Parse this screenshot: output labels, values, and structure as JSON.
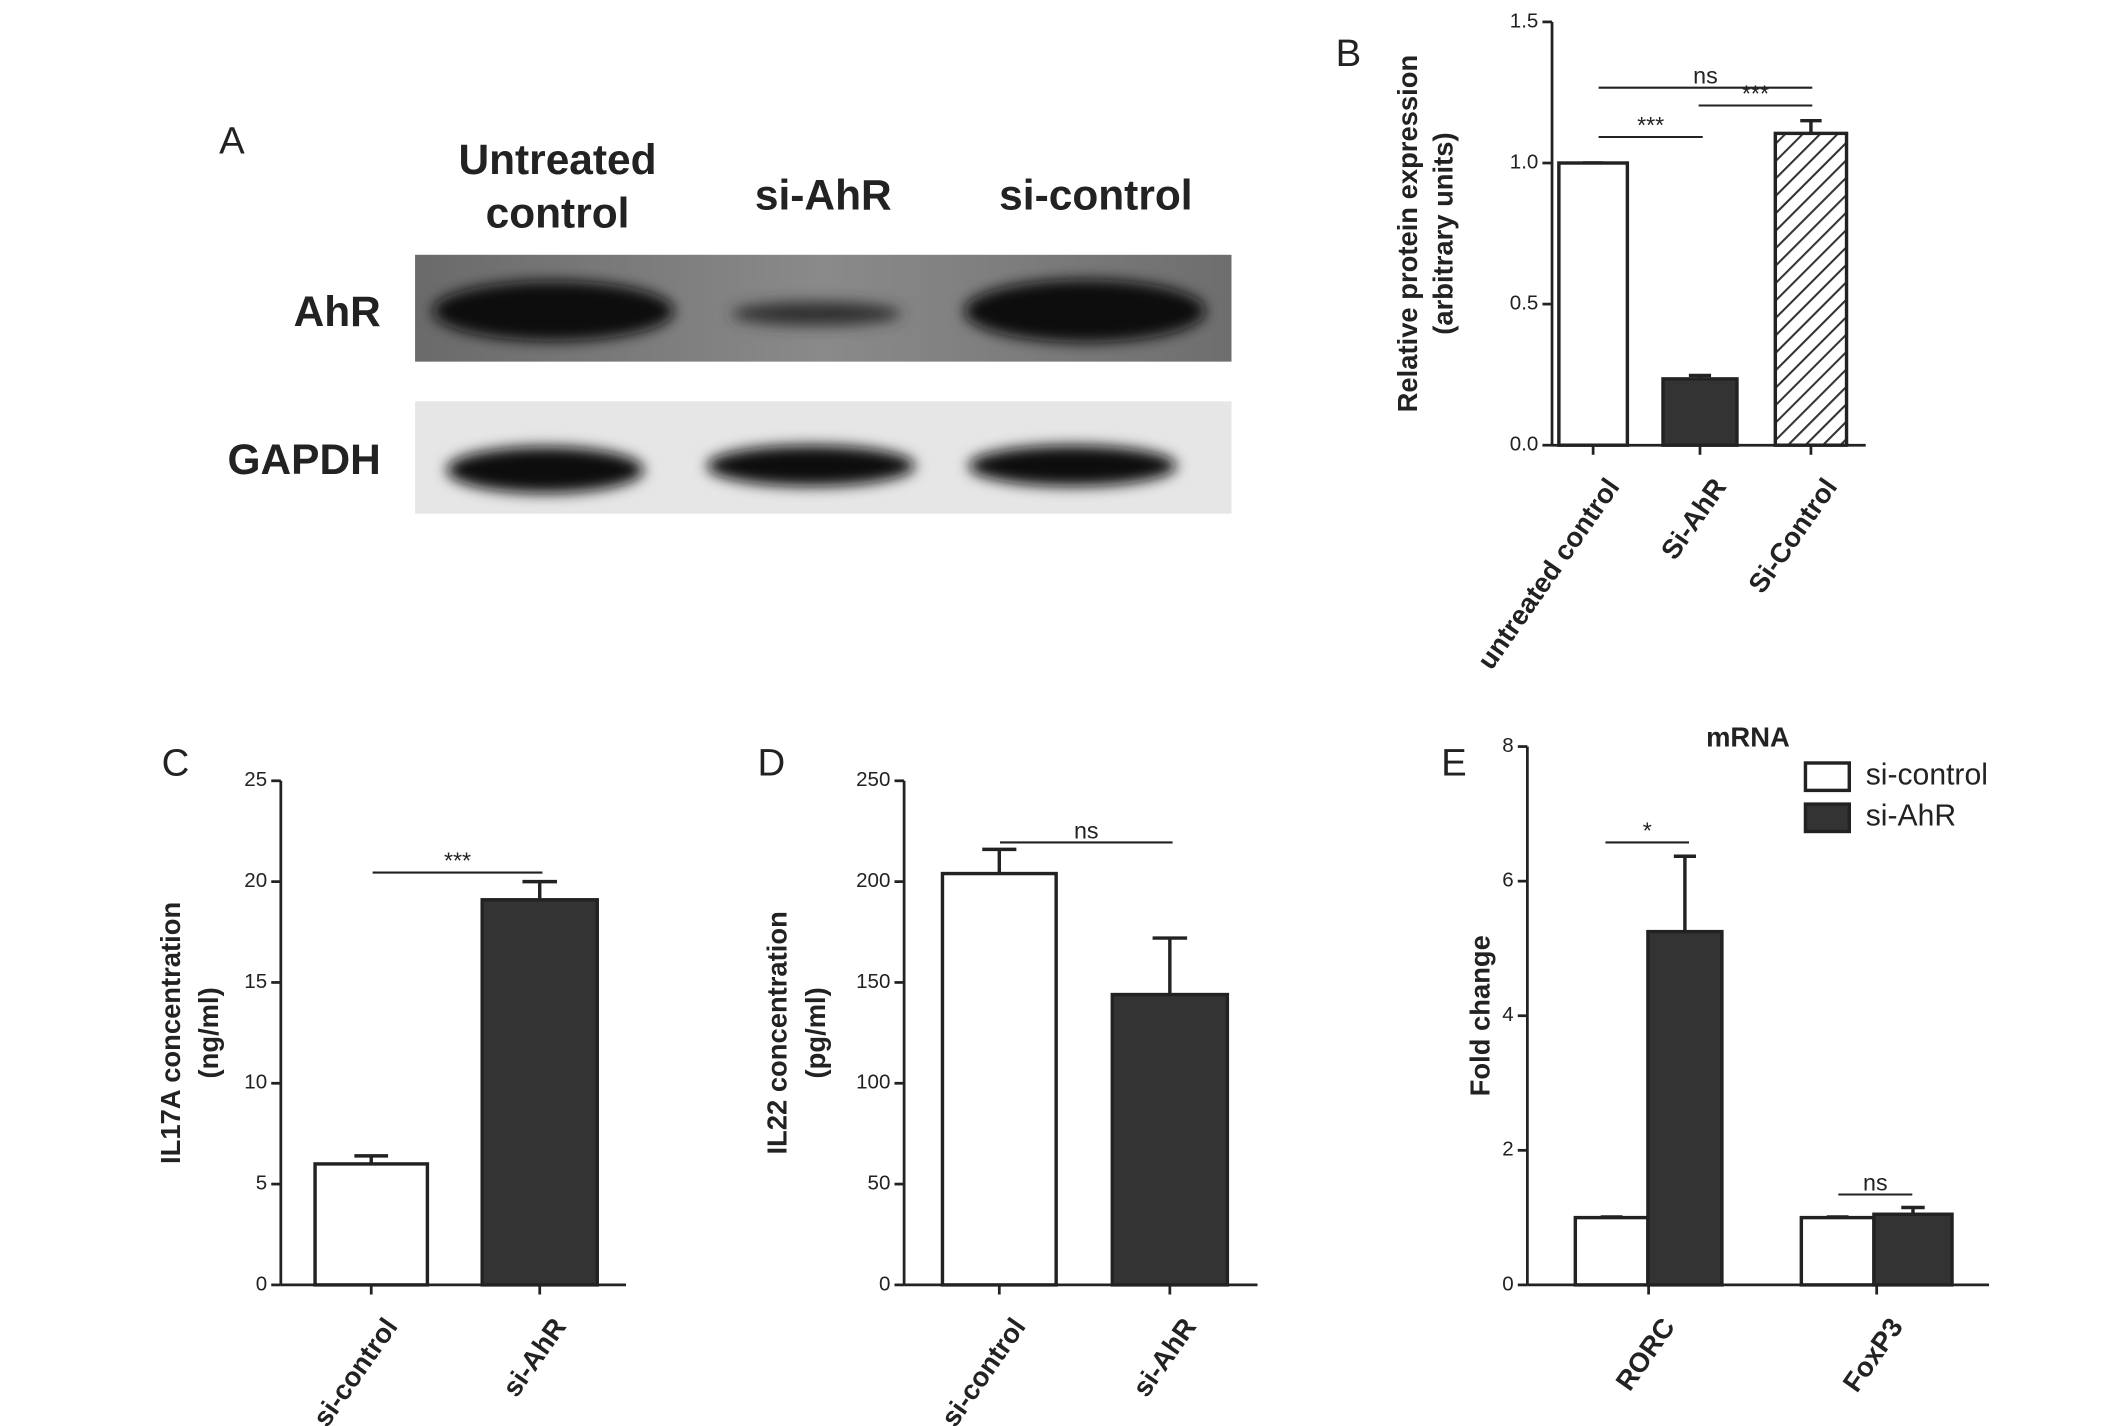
{
  "blot": {
    "panel": "A",
    "lanes": [
      [
        "Untreated",
        "control"
      ],
      "si-AhR",
      "si-control"
    ],
    "rows": [
      "AhR",
      "GAPDH"
    ]
  },
  "chart_data": [
    {
      "type": "bar",
      "panel": "B",
      "ylabel": [
        "Relative protein expression",
        "(arbitrary units)"
      ],
      "categories": [
        "untreated control",
        "Si-AhR",
        "Si-Control"
      ],
      "series": [
        {
          "values": [
            1.0,
            0.235,
            1.105
          ],
          "errors": [
            0,
            0.012,
            0.045
          ],
          "colors": [
            "#ffffff",
            "#333333",
            "#ffffff"
          ],
          "hatch": [
            false,
            false,
            true
          ]
        }
      ],
      "ylim": [
        0,
        1.5
      ],
      "yticks": [
        {
          "value": 0,
          "label": "0.0"
        },
        0.5,
        {
          "value": 1,
          "label": "1.0"
        },
        1.5
      ],
      "annotations": [
        "ns",
        "***",
        "***"
      ]
    },
    {
      "type": "bar",
      "panel": "C",
      "ylabel": [
        "IL17A concentration",
        "(ng/ml)"
      ],
      "categories": [
        "si-control",
        "si-AhR"
      ],
      "series": [
        {
          "values": [
            6.0,
            19.1
          ],
          "errors": [
            0.4,
            0.9
          ],
          "colors": [
            "#ffffff",
            "#333333"
          ]
        }
      ],
      "ylim": [
        0,
        25
      ],
      "yticks": [
        0,
        5,
        10,
        15,
        20,
        25
      ],
      "annotations": [
        "***"
      ]
    },
    {
      "type": "bar",
      "panel": "D",
      "ylabel": [
        "IL22 concentration",
        "(pg/ml)"
      ],
      "categories": [
        "si-control",
        "si-AhR"
      ],
      "series": [
        {
          "values": [
            204,
            144
          ],
          "errors": [
            12,
            28
          ],
          "colors": [
            "#ffffff",
            "#333333"
          ]
        }
      ],
      "ylim": [
        0,
        250
      ],
      "yticks": [
        0,
        50,
        100,
        150,
        200,
        250
      ],
      "annotations": [
        "ns"
      ]
    },
    {
      "type": "bar",
      "panel": "E",
      "title": "mRNA",
      "ylabel": [
        "Fold change"
      ],
      "categories": [
        "RORC",
        "FoxP3"
      ],
      "series": [
        {
          "name": "si-control",
          "color": "#ffffff",
          "values": [
            1.0,
            1.0
          ],
          "errors": [
            0.01,
            0.01
          ]
        },
        {
          "name": "si-AhR",
          "color": "#333333",
          "values": [
            5.25,
            1.05
          ],
          "errors": [
            1.12,
            0.1
          ]
        }
      ],
      "ylim": [
        0,
        8
      ],
      "yticks": [
        0,
        2,
        4,
        6,
        8
      ],
      "annotations": [
        "*",
        "ns"
      ]
    }
  ]
}
